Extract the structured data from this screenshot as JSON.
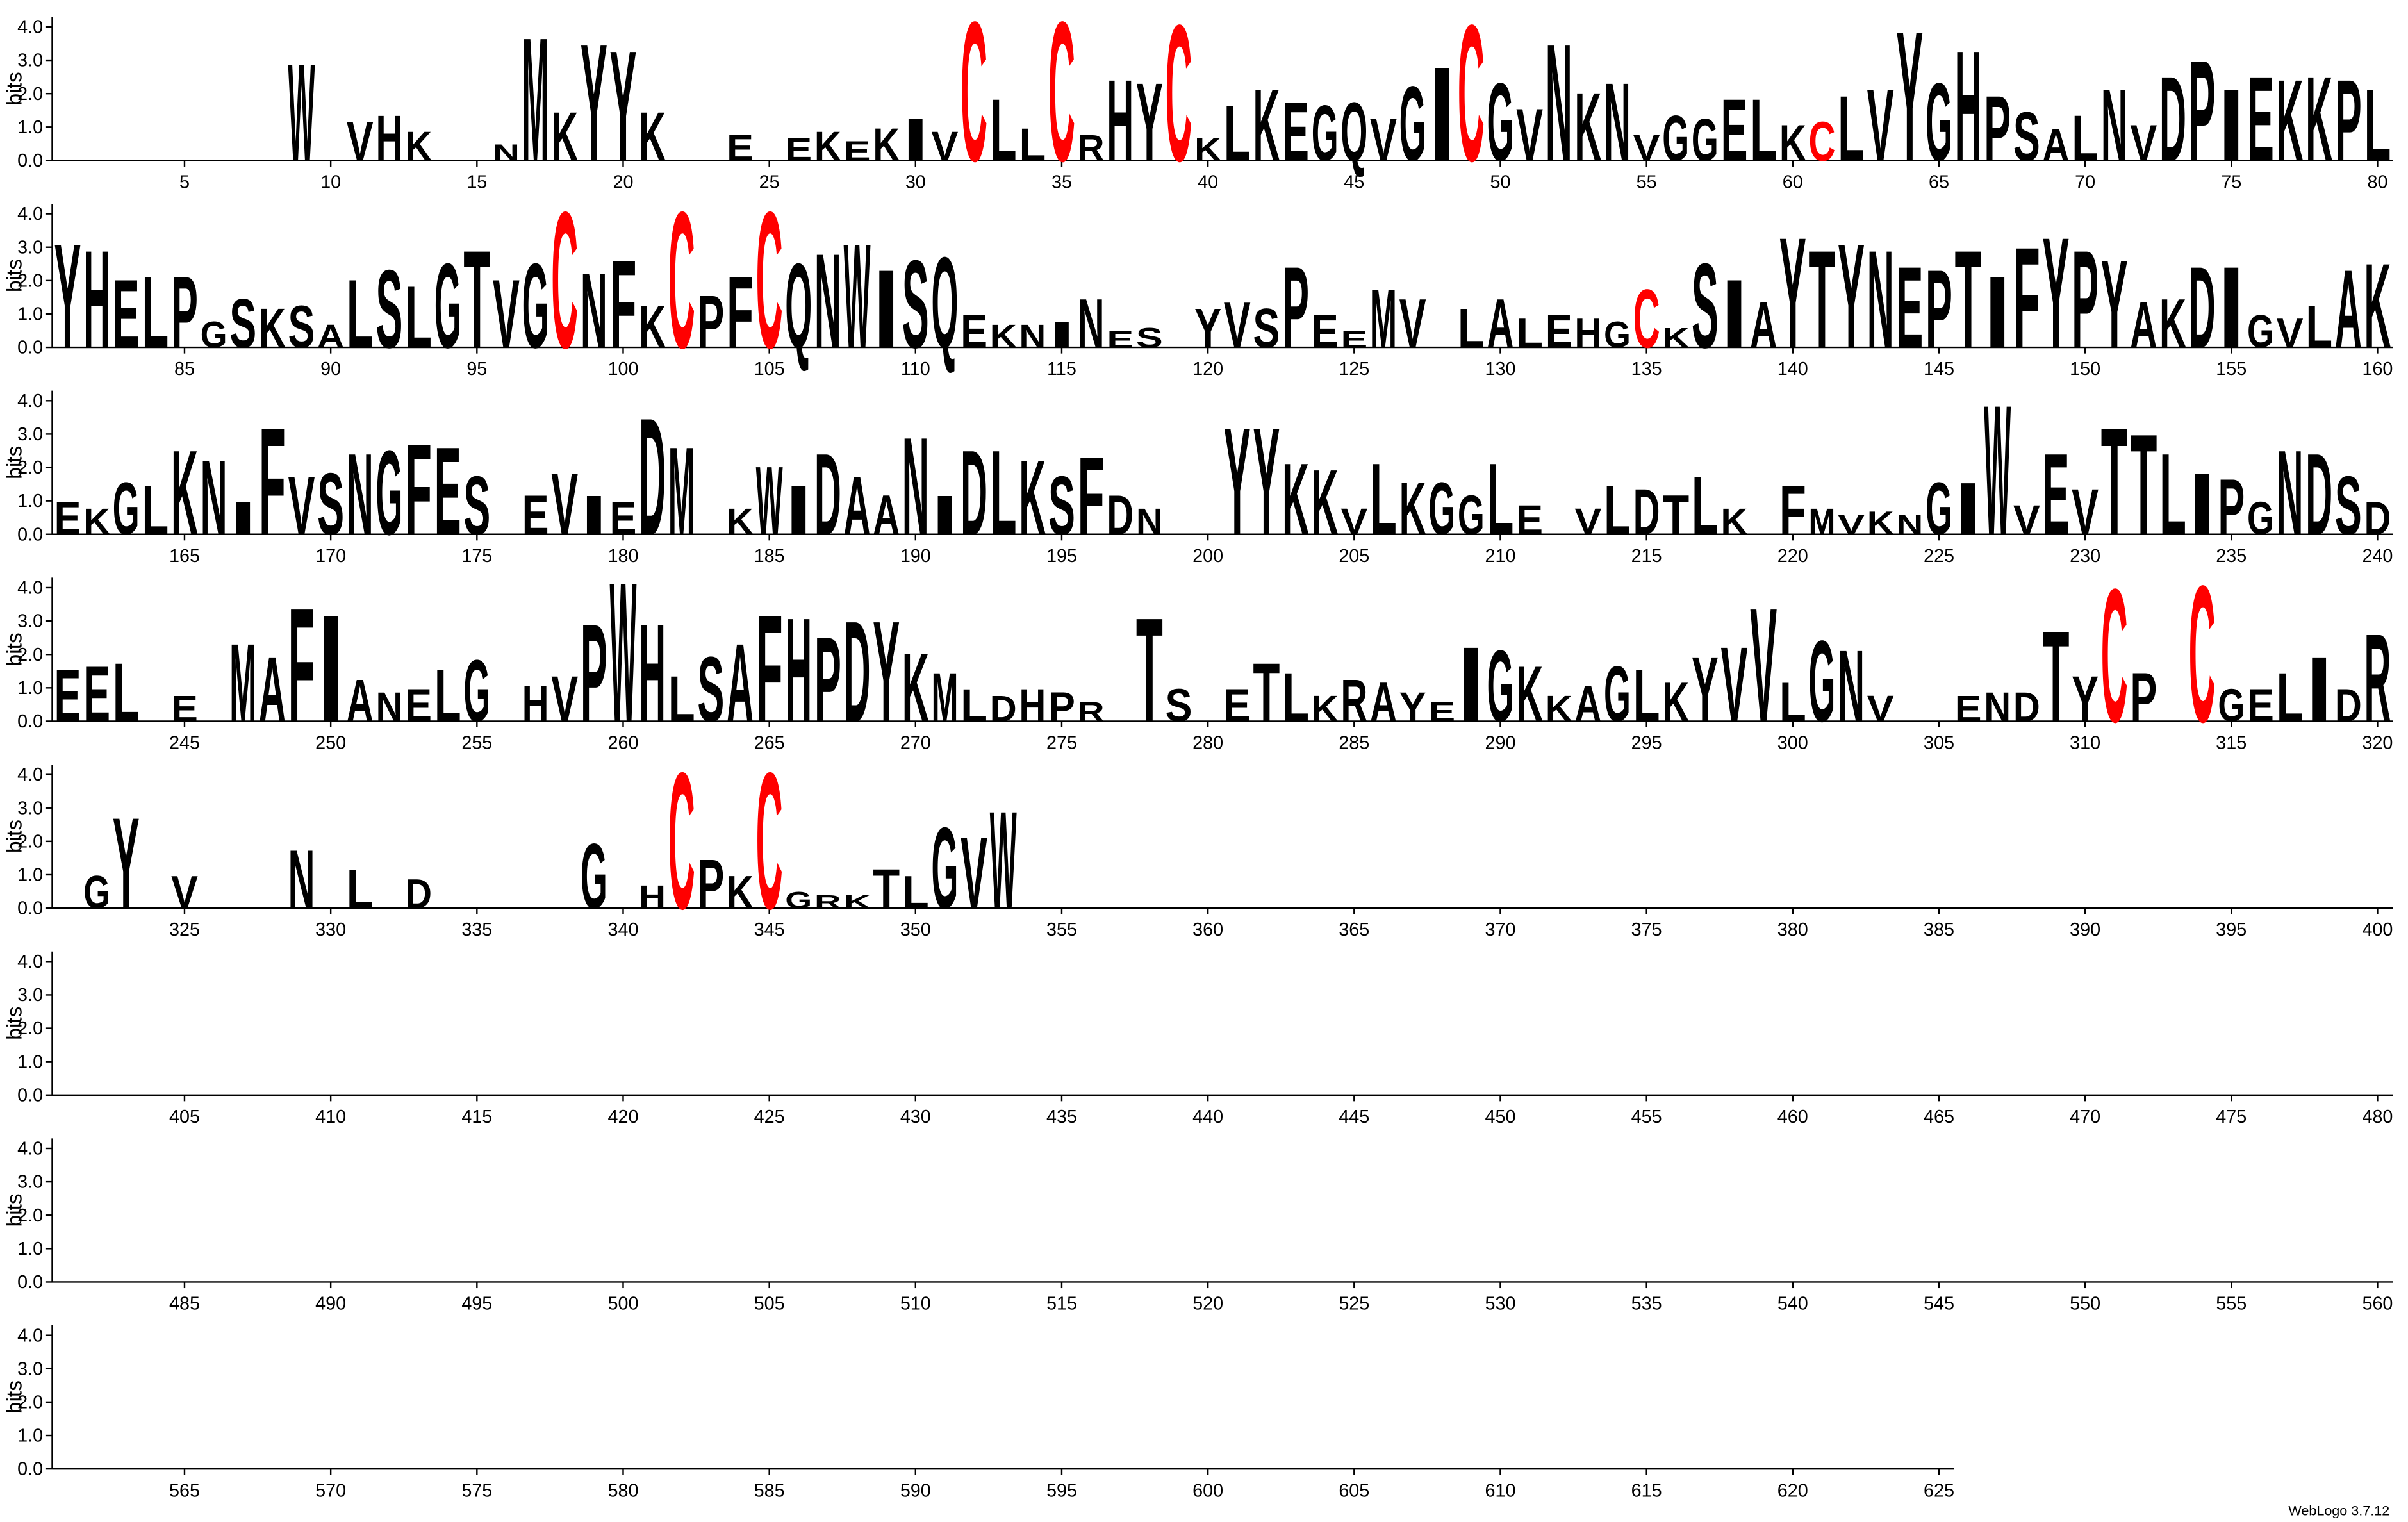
{
  "chart_data": {
    "type": "logo",
    "ylabel": "bits",
    "footer": "WebLogo 3.7.12",
    "color": "#000000",
    "highlight_letter": "C",
    "highlight_color": "#ff0000",
    "xlim": [
      1,
      625
    ],
    "ylim": [
      0,
      4.3
    ],
    "yticks": [
      {
        "value": 0,
        "label": "0.0"
      },
      {
        "value": 1,
        "label": "1.0"
      },
      {
        "value": 2,
        "label": "2.0"
      },
      {
        "value": 3,
        "label": "3.0"
      },
      {
        "value": 4,
        "label": "4.0"
      }
    ],
    "xticks": [
      5,
      10,
      15,
      20,
      25,
      30,
      35,
      40,
      45,
      50,
      55,
      60,
      65,
      70,
      75,
      80,
      85,
      90,
      95,
      100,
      105,
      110,
      115,
      120,
      125,
      130,
      135,
      140,
      145,
      150,
      155,
      160,
      165,
      170,
      175,
      180,
      185,
      190,
      195,
      200,
      205,
      210,
      215,
      220,
      225,
      230,
      235,
      240,
      245,
      250,
      255,
      260,
      265,
      270,
      275,
      280,
      285,
      290,
      295,
      300,
      305,
      310,
      315,
      320,
      325,
      330,
      335,
      340,
      345,
      350,
      355,
      360,
      365,
      370,
      375,
      380,
      385,
      390,
      395,
      400,
      405,
      410,
      415,
      420,
      425,
      430,
      435,
      440,
      445,
      450,
      455,
      460,
      465,
      470,
      475,
      480,
      485,
      490,
      495,
      500,
      505,
      510,
      515,
      520,
      525,
      530,
      535,
      540,
      545,
      550,
      555,
      560,
      565,
      570,
      575,
      580,
      585,
      590,
      595,
      600,
      605,
      610,
      615,
      620,
      625
    ],
    "letters": [
      null,
      null,
      null,
      null,
      null,
      null,
      null,
      null,
      "W",
      null,
      "V",
      "H",
      "K",
      null,
      null,
      "N",
      "M",
      "K",
      "Y",
      "Y",
      "K",
      null,
      null,
      "E",
      null,
      "E",
      "K",
      "E",
      "K",
      "I",
      "V",
      "C",
      "L",
      "L",
      "C",
      "R",
      "H",
      "Y",
      "C",
      "K",
      "L",
      "K",
      "E",
      "G",
      "Q",
      "V",
      "G",
      "I",
      "C",
      "G",
      "V",
      "N",
      "K",
      "N",
      "V",
      "G",
      "G",
      "E",
      "L",
      "K",
      "C",
      "L",
      "V",
      "Y",
      "G",
      "H",
      "P",
      "S",
      "A",
      "L",
      "N",
      "V",
      "D",
      "P",
      "I",
      "E",
      "K",
      "K",
      "P",
      "L",
      "Y",
      "H",
      "E",
      "L",
      "P",
      "G",
      "S",
      "K",
      "S",
      "A",
      "L",
      "S",
      "L",
      "G",
      "T",
      "V",
      "G",
      "C",
      "N",
      "F",
      "K",
      "C",
      "P",
      "F",
      "C",
      "Q",
      "N",
      "W",
      "I",
      "S",
      "Q",
      "E",
      "K",
      "N",
      "I",
      "N",
      "E",
      "S",
      null,
      "Y",
      "V",
      "S",
      "P",
      "E",
      "E",
      "M",
      "V",
      null,
      "L",
      "A",
      "L",
      "E",
      "H",
      "G",
      "C",
      "K",
      "S",
      "I",
      "A",
      "Y",
      "T",
      "Y",
      "N",
      "E",
      "P",
      "T",
      "I",
      "F",
      "Y",
      "P",
      "Y",
      "A",
      "K",
      "D",
      "I",
      "G",
      "V",
      "L",
      "A",
      "K",
      "E",
      "K",
      "G",
      "L",
      "K",
      "N",
      "I",
      "F",
      "V",
      "S",
      "N",
      "G",
      "F",
      "E",
      "S",
      null,
      "E",
      "V",
      "I",
      "E",
      "D",
      "M",
      null,
      "K",
      "W",
      "I",
      "D",
      "A",
      "A",
      "N",
      "I",
      "D",
      "L",
      "K",
      "S",
      "F",
      "D",
      "N",
      null,
      null,
      "Y",
      "Y",
      "K",
      "K",
      "V",
      "L",
      "K",
      "G",
      "G",
      "L",
      "E",
      null,
      "V",
      "L",
      "D",
      "T",
      "L",
      "K",
      null,
      "F",
      "M",
      "V",
      "K",
      "N",
      "G",
      "I",
      "W",
      "V",
      "E",
      "V",
      "T",
      "T",
      "L",
      "I",
      "P",
      "G",
      "N",
      "D",
      "S",
      "D",
      "E",
      "E",
      "L",
      null,
      "E",
      null,
      "M",
      "A",
      "F",
      "I",
      "A",
      "N",
      "E",
      "L",
      "G",
      null,
      "H",
      "V",
      "P",
      "W",
      "H",
      "L",
      "S",
      "A",
      "F",
      "H",
      "P",
      "D",
      "Y",
      "K",
      "M",
      "L",
      "D",
      "H",
      "P",
      "R",
      null,
      "T",
      "S",
      null,
      "E",
      "T",
      "L",
      "K",
      "R",
      "A",
      "Y",
      "E",
      "I",
      "G",
      "K",
      "K",
      "A",
      "G",
      "L",
      "K",
      "Y",
      "V",
      "V",
      "L",
      "G",
      "N",
      "V",
      null,
      null,
      "E",
      "N",
      "D",
      "T",
      "Y",
      "C",
      "P",
      null,
      "C",
      "G",
      "E",
      "L",
      "I",
      "D",
      "R",
      null,
      "G",
      "Y",
      null,
      "V",
      null,
      null,
      null,
      "N",
      null,
      "L",
      null,
      "D",
      null,
      null,
      null,
      null,
      null,
      "G",
      null,
      "H",
      "C",
      "P",
      "K",
      "C",
      "G",
      "R",
      "K",
      "T",
      "L",
      "G",
      "V",
      "W"
    ],
    "values": [
      null,
      null,
      null,
      null,
      null,
      null,
      null,
      null,
      3.0,
      null,
      1.2,
      1.4,
      0.9,
      null,
      null,
      0.5,
      3.8,
      1.5,
      3.6,
      3.4,
      1.5,
      null,
      null,
      0.8,
      null,
      0.7,
      0.9,
      0.6,
      1.0,
      1.3,
      0.9,
      4.3,
      1.9,
      1.0,
      4.3,
      0.8,
      2.5,
      2.4,
      4.2,
      0.7,
      1.7,
      2.2,
      1.8,
      1.7,
      1.8,
      1.3,
      2.3,
      2.9,
      4.2,
      2.4,
      1.6,
      3.6,
      2.1,
      2.4,
      0.8,
      1.4,
      1.3,
      1.9,
      1.9,
      1.1,
      1.2,
      2.0,
      2.2,
      4.0,
      2.4,
      3.4,
      2.0,
      1.5,
      1.0,
      1.4,
      2.2,
      1.1,
      2.6,
      3.1,
      2.2,
      2.6,
      2.5,
      2.6,
      2.5,
      2.2,
      3.2,
      3.0,
      2.1,
      2.2,
      2.2,
      0.8,
      1.5,
      1.2,
      1.3,
      0.7,
      2.1,
      2.4,
      1.9,
      2.6,
      3.0,
      2.1,
      2.6,
      4.2,
      2.3,
      2.7,
      1.3,
      4.2,
      1.6,
      2.2,
      4.2,
      2.6,
      2.9,
      3.2,
      2.4,
      2.7,
      2.8,
      1.0,
      0.7,
      0.7,
      0.8,
      1.5,
      0.5,
      0.6,
      null,
      1.2,
      1.4,
      1.2,
      2.5,
      1.0,
      0.5,
      1.8,
      1.5,
      null,
      1.2,
      1.5,
      0.9,
      1.0,
      0.9,
      0.8,
      1.8,
      0.6,
      2.6,
      2.1,
      1.4,
      3.4,
      3.0,
      3.2,
      3.0,
      2.5,
      2.4,
      3.0,
      2.2,
      3.1,
      3.4,
      3.0,
      2.7,
      1.4,
      1.5,
      2.5,
      2.5,
      1.0,
      0.9,
      1.3,
      2.4,
      2.6,
      1.0,
      0.8,
      1.6,
      1.5,
      2.6,
      2.3,
      1.0,
      3.3,
      1.8,
      1.9,
      2.5,
      2.6,
      2.8,
      2.7,
      1.8,
      null,
      1.2,
      1.9,
      1.2,
      1.0,
      3.6,
      2.7,
      null,
      0.8,
      2.1,
      1.5,
      2.5,
      1.8,
      1.2,
      3.0,
      1.2,
      2.6,
      2.6,
      2.3,
      1.8,
      2.4,
      1.2,
      0.8,
      null,
      null,
      3.3,
      3.3,
      2.2,
      2.0,
      0.8,
      2.2,
      1.6,
      1.6,
      1.2,
      2.2,
      0.9,
      null,
      0.8,
      1.5,
      1.4,
      1.2,
      1.8,
      0.8,
      null,
      1.5,
      0.8,
      0.6,
      0.7,
      0.6,
      1.6,
      1.6,
      4.0,
      0.9,
      2.5,
      1.4,
      3.3,
      3.1,
      2.5,
      1.9,
      1.7,
      1.0,
      2.6,
      2.5,
      1.8,
      1.0,
      1.6,
      1.7,
      1.8,
      null,
      0.8,
      null,
      2.4,
      2.0,
      3.5,
      3.3,
      1.3,
      0.9,
      1.0,
      1.6,
      1.9,
      null,
      1.1,
      1.4,
      3.0,
      4.3,
      3.0,
      1.4,
      2.0,
      2.4,
      3.3,
      3.2,
      2.6,
      3.1,
      3.1,
      2.1,
      1.5,
      1.0,
      0.8,
      1.0,
      0.9,
      0.6,
      null,
      3.2,
      1.0,
      null,
      1.0,
      1.8,
      1.5,
      0.8,
      1.3,
      1.2,
      0.9,
      0.6,
      2.3,
      2.2,
      1.7,
      0.8,
      1.1,
      1.7,
      1.6,
      1.2,
      2.0,
      2.3,
      3.5,
      1.2,
      2.5,
      2.2,
      0.8,
      null,
      null,
      0.8,
      0.9,
      0.9,
      2.8,
      1.4,
      4.1,
      1.5,
      null,
      4.2,
      1.0,
      1.0,
      1.5,
      2.0,
      1.0,
      2.7,
      null,
      1.0,
      2.8,
      null,
      1.0,
      null,
      null,
      null,
      1.8,
      null,
      1.2,
      null,
      0.9,
      null,
      null,
      null,
      null,
      null,
      2.0,
      null,
      0.7,
      4.2,
      1.5,
      1.0,
      4.2,
      0.5,
      0.4,
      0.4,
      1.2,
      1.0,
      2.5,
      2.2,
      3.0
    ]
  }
}
